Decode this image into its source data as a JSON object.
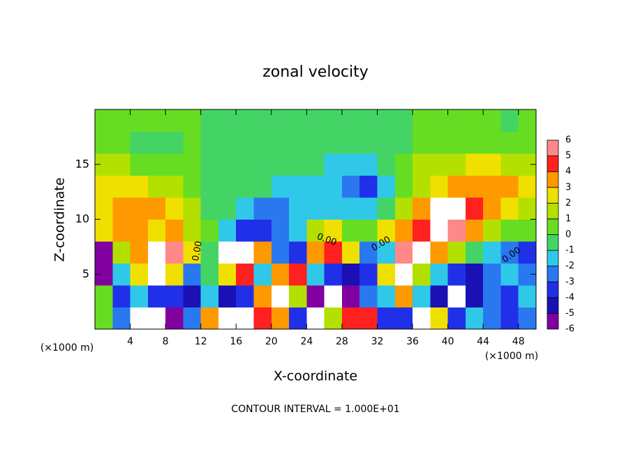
{
  "chart_data": {
    "type": "contour",
    "title": "zonal velocity",
    "x_label": "X-coordinate",
    "y_label": "Z-coordinate",
    "x_unit": "(×1000 m)",
    "y_unit": "(×1000 m)",
    "footer": "CONTOUR INTERVAL = 1.000E+01",
    "contour_labels": [
      "0.00",
      "0.00",
      "0.00",
      "0.00"
    ],
    "xlim": [
      0,
      50
    ],
    "ylim": [
      0,
      20
    ],
    "xticks": [
      4,
      8,
      12,
      16,
      20,
      24,
      28,
      32,
      36,
      40,
      44,
      48
    ],
    "yticks": [
      5,
      10,
      15
    ],
    "x": [
      1,
      3,
      5,
      7,
      9,
      11,
      13,
      15,
      17,
      19,
      21,
      23,
      25,
      27,
      29,
      31,
      33,
      35,
      37,
      39,
      41,
      43,
      45,
      47,
      49
    ],
    "y": [
      1,
      3,
      5,
      7,
      9,
      11,
      13,
      15,
      17,
      19
    ],
    "z": [
      [
        1,
        -2,
        7,
        7,
        -5,
        -2,
        4,
        7,
        7,
        5,
        4,
        -3,
        7,
        2,
        5,
        5,
        -3,
        -3,
        7,
        3,
        -3,
        -1,
        -2,
        -3,
        -2
      ],
      [
        0.5,
        -3,
        -1,
        -3,
        -3,
        -4,
        -1,
        -4,
        -3,
        4,
        7,
        2,
        -5,
        -7,
        -5,
        -2,
        -1,
        4,
        -1,
        -4,
        -7,
        -4,
        -2,
        -3,
        -1
      ],
      [
        -6,
        -1,
        3,
        7,
        3,
        -2,
        -0.5,
        3,
        5,
        -1,
        4,
        5,
        -1,
        -3,
        -4,
        -3,
        3,
        7,
        2,
        -1,
        -3,
        -4,
        -2,
        -1,
        -2
      ],
      [
        -5,
        2,
        4,
        7,
        6,
        3,
        -0.5,
        7,
        7,
        4,
        -2,
        -3,
        4,
        5,
        3,
        -2,
        -1,
        6,
        7,
        4,
        2,
        -0.5,
        -1,
        -2,
        -3
      ],
      [
        3,
        3.5,
        3.5,
        3,
        3.5,
        2,
        0.5,
        -1,
        -3,
        -3,
        -2,
        -1,
        2,
        3,
        1,
        0.5,
        3,
        4,
        5,
        7,
        6,
        4,
        2,
        1,
        0.5
      ],
      [
        2.5,
        3.5,
        4,
        3.5,
        2.5,
        1.5,
        -0.2,
        -0.8,
        -1.5,
        -2.5,
        -2,
        -1.5,
        -1.2,
        -1,
        -1.5,
        -1.5,
        -0.5,
        2,
        4,
        6.5,
        7,
        5,
        4,
        3,
        2
      ],
      [
        3,
        2.5,
        2.5,
        2,
        1.5,
        0.8,
        -0.3,
        -0.6,
        -0.8,
        -0.8,
        -1,
        -1.2,
        -1.2,
        -1.5,
        -2,
        -3,
        -1.5,
        1,
        2,
        3,
        3.5,
        4,
        4,
        4,
        3
      ],
      [
        1.5,
        1.2,
        0.8,
        0.5,
        0.6,
        0.4,
        -0.3,
        -0.5,
        -0.5,
        -0.5,
        -0.6,
        -0.8,
        -0.8,
        -1,
        -1.2,
        -1,
        -0.6,
        0.5,
        1.2,
        1.5,
        2,
        2.5,
        2.5,
        2,
        1.5
      ],
      [
        0.8,
        0.6,
        -0.3,
        -0.5,
        -0.3,
        0.3,
        -0.3,
        -0.4,
        -0.4,
        -0.4,
        -0.5,
        -0.5,
        -0.5,
        -0.5,
        -0.5,
        -0.4,
        -0.3,
        -0.3,
        0.3,
        0.6,
        0.8,
        1.0,
        0.8,
        0.5,
        0.6
      ],
      [
        0.6,
        0.6,
        0.6,
        0.6,
        0.5,
        0.3,
        -0.2,
        -0.3,
        -0.3,
        -0.3,
        -0.3,
        -0.3,
        -0.3,
        -0.3,
        -0.3,
        -0.3,
        -0.2,
        -0.2,
        0.3,
        0.5,
        0.5,
        0.6,
        0.5,
        -0.3,
        0.5
      ]
    ],
    "levels": [
      -6,
      -5,
      -4,
      -3,
      -2,
      -1,
      0,
      1,
      2,
      3,
      4,
      5,
      6
    ],
    "colors": [
      "#8000a0",
      "#1a10b4",
      "#2030e8",
      "#2a78f0",
      "#30c8e8",
      "#44d466",
      "#66dd22",
      "#b4e000",
      "#f0e000",
      "#ff9900",
      "#ff2020",
      "#ff8888"
    ],
    "extend_color": "#ffffff"
  }
}
